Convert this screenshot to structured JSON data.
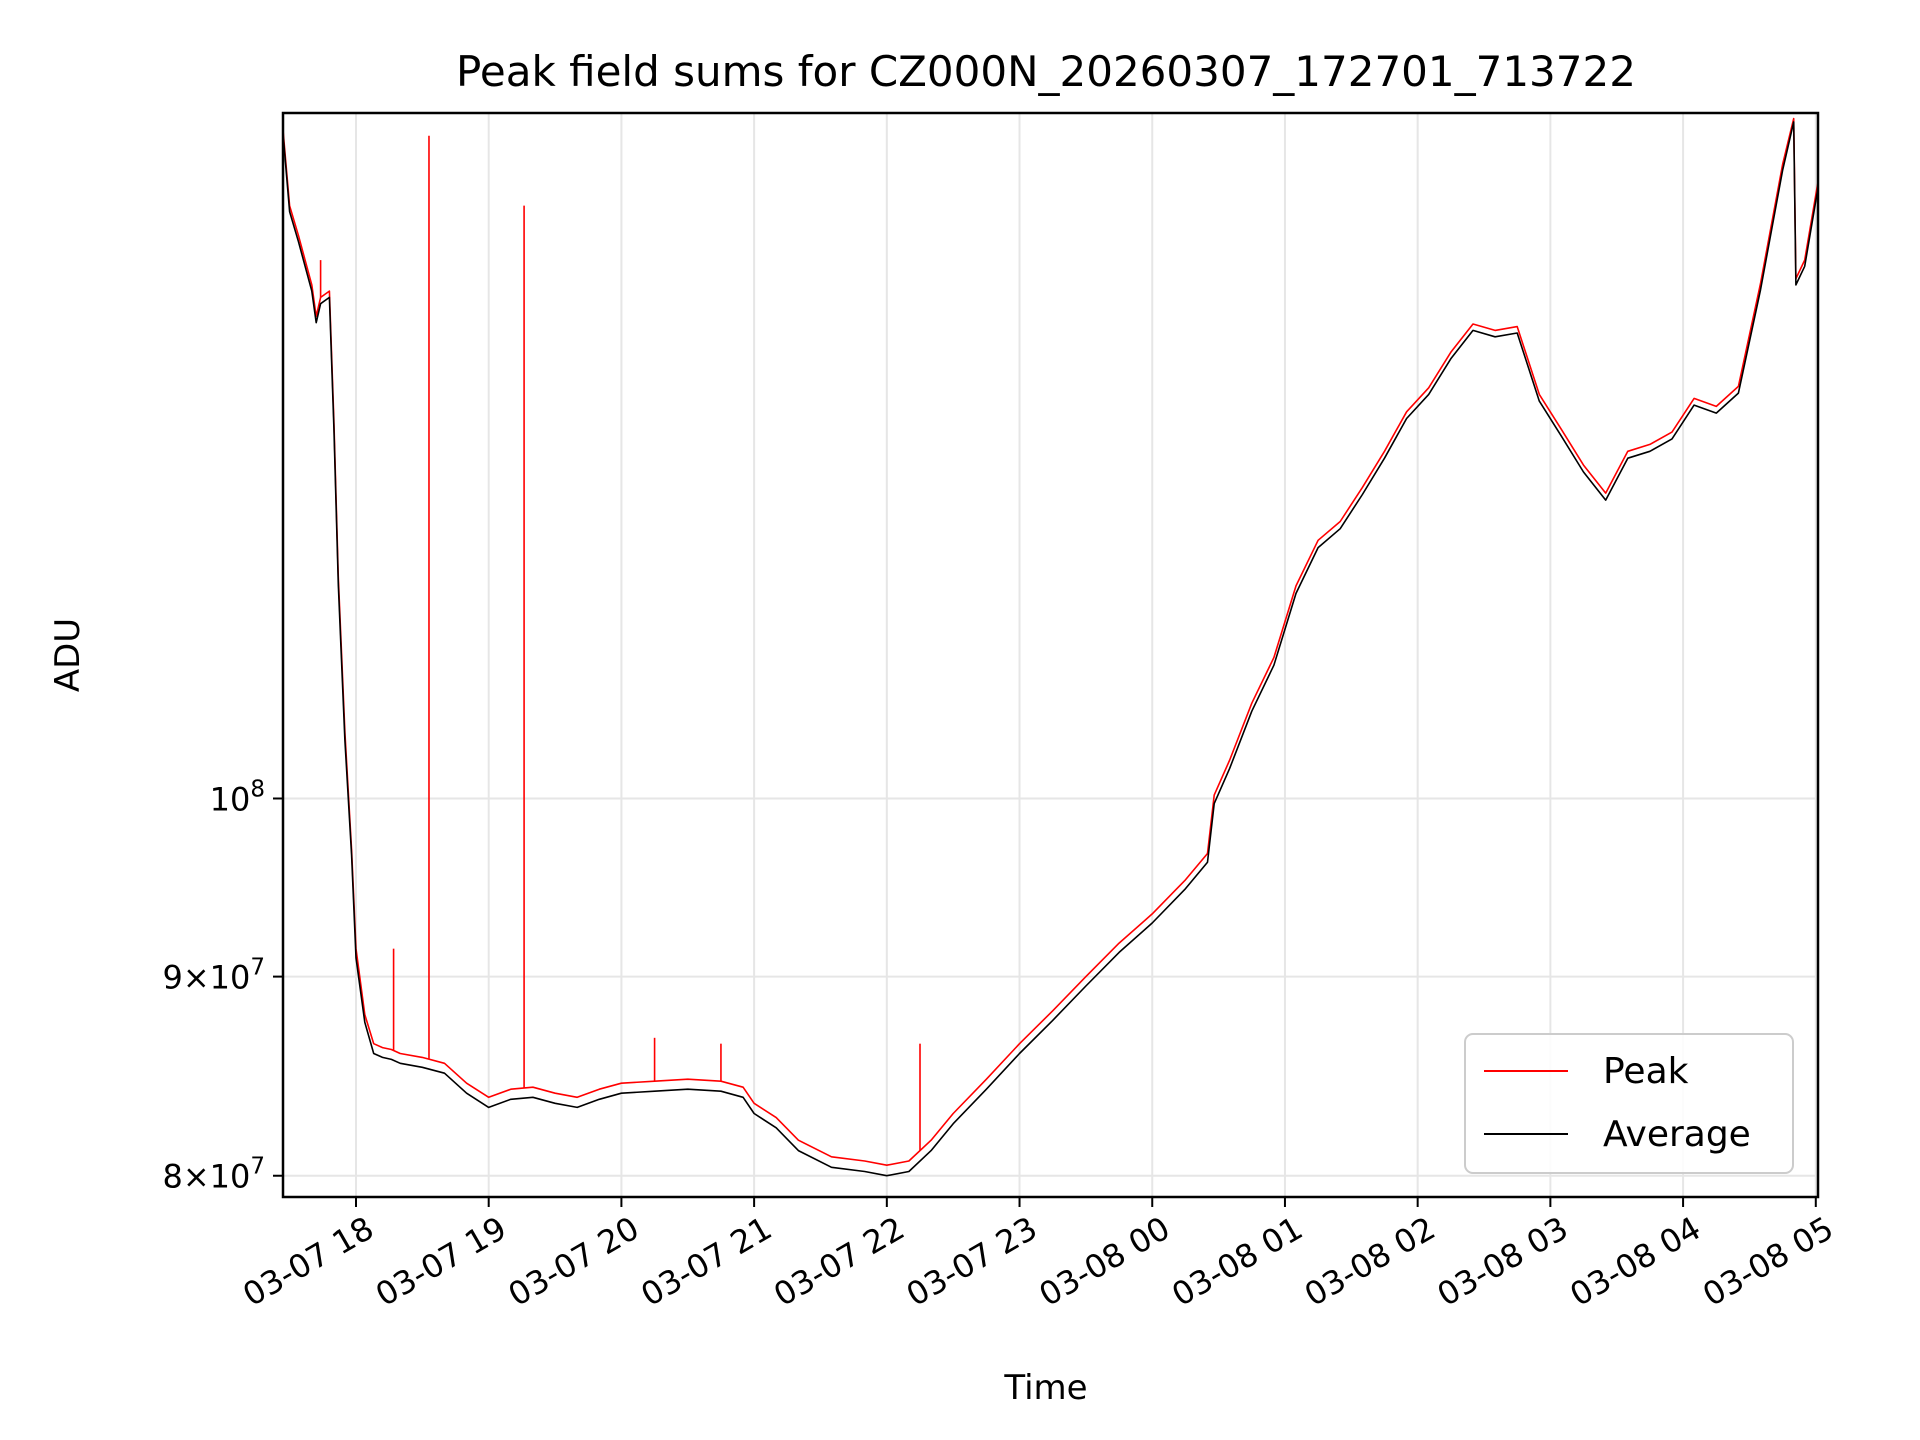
{
  "chart_data": {
    "type": "line",
    "title": "Peak field sums for CZ000N_20260307_172701_713722",
    "xlabel": "Time",
    "ylabel": "ADU",
    "x_unit": "hours",
    "xlim": [
      "03-07 17:27",
      "03-08 05:01"
    ],
    "ylim": [
      79000000,
      150000000
    ],
    "y_scale": "log",
    "grid": true,
    "legend_position": "lower-right",
    "x_ticks": [
      "03-07 18",
      "03-07 19",
      "03-07 20",
      "03-07 21",
      "03-07 22",
      "03-07 23",
      "03-08 00",
      "03-08 01",
      "03-08 02",
      "03-08 03",
      "03-08 04",
      "03-08 05"
    ],
    "y_ticks": [
      {
        "value": 80000000,
        "mantissa": "8",
        "exponent": "7"
      },
      {
        "value": 90000000,
        "mantissa": "9",
        "exponent": "7"
      },
      {
        "value": 100000000,
        "mantissa": "",
        "exponent": "8"
      }
    ],
    "tick_base": "10",
    "tick_times": "×",
    "x": [
      "03-07 17:27",
      "03-07 17:30",
      "03-07 17:34",
      "03-07 17:40",
      "03-07 17:42",
      "03-07 17:44",
      "03-07 17:48",
      "03-07 17:50",
      "03-07 17:52",
      "03-07 17:55",
      "03-07 17:58",
      "03-07 18:00",
      "03-07 18:04",
      "03-07 18:08",
      "03-07 18:12",
      "03-07 18:16",
      "03-07 18:20",
      "03-07 18:30",
      "03-07 18:40",
      "03-07 18:50",
      "03-07 19:00",
      "03-07 19:10",
      "03-07 19:20",
      "03-07 19:30",
      "03-07 19:40",
      "03-07 19:50",
      "03-07 20:00",
      "03-07 20:15",
      "03-07 20:30",
      "03-07 20:45",
      "03-07 20:55",
      "03-07 21:00",
      "03-07 21:10",
      "03-07 21:20",
      "03-07 21:35",
      "03-07 21:50",
      "03-07 22:00",
      "03-07 22:10",
      "03-07 22:20",
      "03-07 22:30",
      "03-07 22:45",
      "03-07 23:00",
      "03-07 23:15",
      "03-07 23:30",
      "03-07 23:45",
      "03-08 00:00",
      "03-08 00:15",
      "03-08 00:25",
      "03-08 00:28",
      "03-08 00:35",
      "03-08 00:45",
      "03-08 00:55",
      "03-08 01:05",
      "03-08 01:15",
      "03-08 01:25",
      "03-08 01:35",
      "03-08 01:45",
      "03-08 01:55",
      "03-08 02:05",
      "03-08 02:15",
      "03-08 02:25",
      "03-08 02:35",
      "03-08 02:45",
      "03-08 02:55",
      "03-08 03:05",
      "03-08 03:15",
      "03-08 03:25",
      "03-08 03:35",
      "03-08 03:45",
      "03-08 03:55",
      "03-08 04:05",
      "03-08 04:15",
      "03-08 04:25",
      "03-08 04:35",
      "03-08 04:45",
      "03-08 04:50",
      "03-08 04:51",
      "03-08 04:55",
      "03-08 05:01"
    ],
    "series": [
      {
        "name": "Peak",
        "color": "#ff0000",
        "values": [
          148500000,
          142000000,
          139500000,
          135500000,
          133000000,
          134500000,
          135000000,
          125000000,
          114000000,
          104000000,
          97000000,
          91500000,
          88000000,
          86500000,
          86300000,
          86200000,
          86000000,
          85800000,
          85500000,
          84500000,
          83800000,
          84200000,
          84300000,
          84000000,
          83800000,
          84200000,
          84500000,
          84600000,
          84700000,
          84600000,
          84300000,
          83500000,
          82800000,
          81700000,
          80900000,
          80700000,
          80500000,
          80700000,
          81700000,
          83000000,
          84700000,
          86500000,
          88200000,
          90000000,
          91800000,
          93400000,
          95300000,
          96800000,
          100200000,
          102300000,
          105800000,
          108700000,
          113400000,
          116500000,
          117800000,
          120200000,
          122800000,
          125700000,
          127500000,
          130200000,
          132400000,
          131900000,
          132200000,
          127000000,
          124400000,
          121800000,
          119800000,
          122800000,
          123300000,
          124200000,
          126700000,
          126100000,
          127600000,
          135600000,
          145500000,
          149500000,
          136000000,
          137500000,
          144000000
        ]
      },
      {
        "name": "Average",
        "color": "#000000",
        "values": [
          148200000,
          141500000,
          139000000,
          135000000,
          132500000,
          134000000,
          134500000,
          124500000,
          113500000,
          103500000,
          96700000,
          91000000,
          87600000,
          86000000,
          85800000,
          85700000,
          85500000,
          85300000,
          85000000,
          84000000,
          83300000,
          83700000,
          83800000,
          83500000,
          83300000,
          83700000,
          84000000,
          84100000,
          84200000,
          84100000,
          83800000,
          83000000,
          82300000,
          81200000,
          80400000,
          80200000,
          80000000,
          80200000,
          81200000,
          82500000,
          84200000,
          86000000,
          87700000,
          89500000,
          91300000,
          92900000,
          94800000,
          96300000,
          99700000,
          101800000,
          105300000,
          108200000,
          112900000,
          116000000,
          117300000,
          119700000,
          122300000,
          125200000,
          127000000,
          129700000,
          131900000,
          131400000,
          131700000,
          126500000,
          123900000,
          121300000,
          119300000,
          122300000,
          122800000,
          123700000,
          126200000,
          125600000,
          127100000,
          135100000,
          145000000,
          149200000,
          135500000,
          137000000,
          143500000
        ]
      }
    ],
    "spikes": [
      {
        "x": "03-07 17:44",
        "value": 137500000
      },
      {
        "x": "03-07 18:17",
        "value": 91500000
      },
      {
        "x": "03-07 18:33",
        "value": 148000000
      },
      {
        "x": "03-07 19:16",
        "value": 142000000
      },
      {
        "x": "03-07 20:15",
        "value": 86800000
      },
      {
        "x": "03-07 20:45",
        "value": 86500000
      },
      {
        "x": "03-07 22:15",
        "value": 86500000
      }
    ]
  }
}
